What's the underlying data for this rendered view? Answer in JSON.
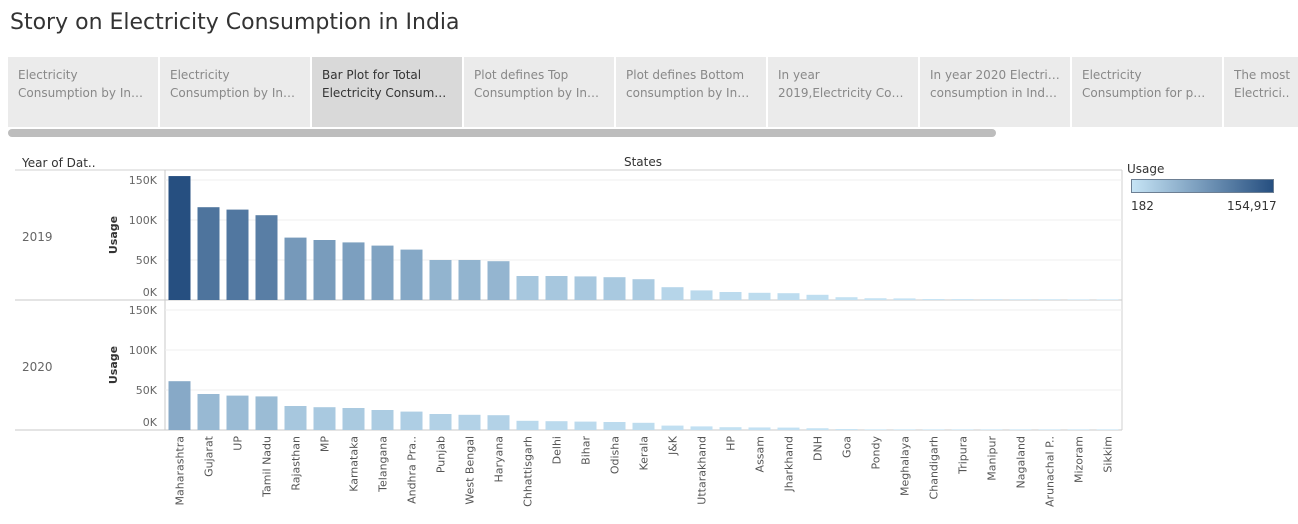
{
  "title": "Story on Electricity Consumption in India",
  "tabs": [
    {
      "line1": "Electricity",
      "line2": "Consumption by India..",
      "active": false
    },
    {
      "line1": "Electricity",
      "line2": "Consumption by India..",
      "active": false
    },
    {
      "line1": "Bar Plot for Total",
      "line2": "Electricity Consumpti..",
      "active": true
    },
    {
      "line1": "Plot defines Top",
      "line2": "Consumption by India..",
      "active": false
    },
    {
      "line1": "Plot defines Bottom",
      "line2": "consumption by India..",
      "active": false
    },
    {
      "line1": "In year",
      "line2": "2019,Electricity Cons..",
      "active": false
    },
    {
      "line1": "In year 2020 Electricity",
      "line2": "consumption in India ..",
      "active": false
    },
    {
      "line1": "Electricity",
      "line2": "Consumption for peri..",
      "active": false
    },
    {
      "line1": "The most",
      "line2": "Electrici..",
      "active": false
    }
  ],
  "legend": {
    "title": "Usage",
    "min_label": "182",
    "max_label": "154,917",
    "color_low": "#c6e4f5",
    "color_high": "#264f80"
  },
  "chart_data": {
    "type": "bar",
    "row_header": "Year of Dat..",
    "column_header": "States",
    "ylabel": "Usage",
    "ylim": [
      0,
      160000
    ],
    "yticks": [
      0,
      50000,
      100000,
      150000
    ],
    "ytick_labels": [
      "0K",
      "50K",
      "100K",
      "150K"
    ],
    "categories": [
      "Maharashtra",
      "Gujarat",
      "UP",
      "Tamil Nadu",
      "Rajasthan",
      "MP",
      "Karnataka",
      "Telangana",
      "Andhra Pra..",
      "Punjab",
      "West Bengal",
      "Haryana",
      "Chhattisgarh",
      "Delhi",
      "Bihar",
      "Odisha",
      "Kerala",
      "J&K",
      "Uttarakhand",
      "HP",
      "Assam",
      "Jharkhand",
      "DNH",
      "Goa",
      "Pondy",
      "Meghalaya",
      "Chandigarh",
      "Tripura",
      "Manipur",
      "Nagaland",
      "Arunachal P..",
      "Mizoram",
      "Sikkim"
    ],
    "series": [
      {
        "name": "2019",
        "values": [
          154917,
          116000,
          113000,
          106000,
          78000,
          75000,
          72000,
          68000,
          63000,
          50000,
          50000,
          48500,
          30000,
          30000,
          29500,
          28500,
          26000,
          16000,
          12000,
          10000,
          9000,
          8500,
          6500,
          3500,
          2200,
          2000,
          1200,
          1100,
          1000,
          900,
          900,
          500,
          182
        ]
      },
      {
        "name": "2020",
        "values": [
          61000,
          45000,
          43000,
          42000,
          30000,
          28500,
          27500,
          25000,
          23000,
          20000,
          19000,
          18500,
          11500,
          11000,
          10500,
          10000,
          9000,
          5500,
          4500,
          3500,
          3200,
          3000,
          2200,
          1200,
          700,
          700,
          400,
          350,
          300,
          300,
          250,
          150,
          80
        ]
      }
    ]
  }
}
